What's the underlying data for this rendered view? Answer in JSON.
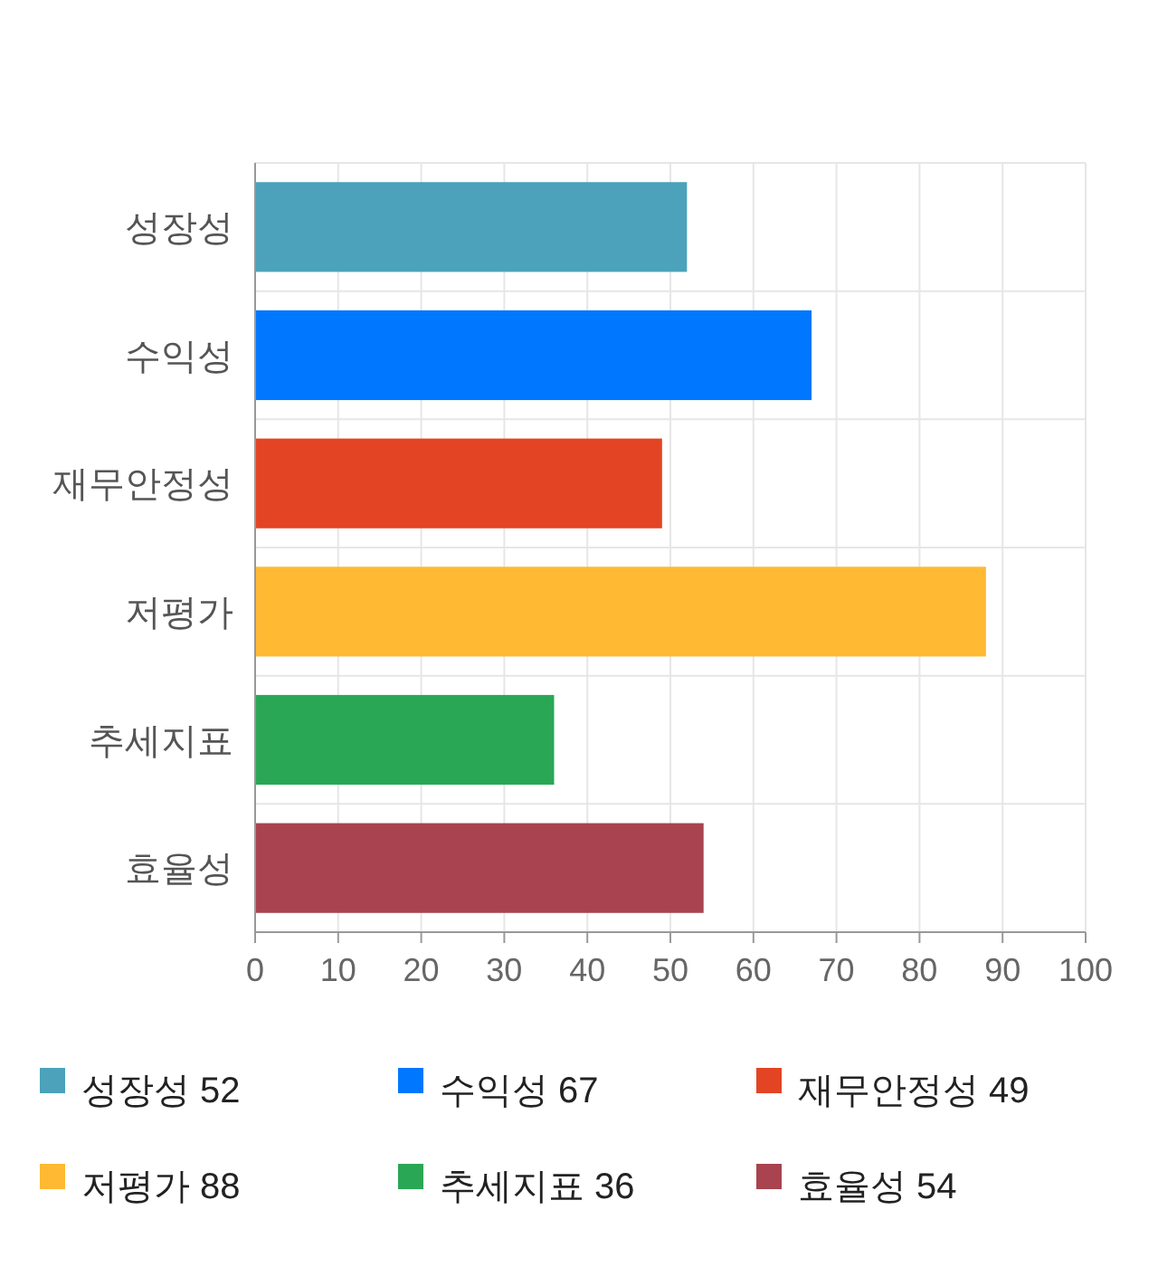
{
  "chart_data": {
    "type": "bar",
    "orientation": "horizontal",
    "categories": [
      "성장성",
      "수익성",
      "재무안정성",
      "저평가",
      "추세지표",
      "효율성"
    ],
    "series": [
      {
        "name": "성장성 52",
        "color": "#4ba2ba",
        "values": [
          52,
          null,
          null,
          null,
          null,
          null
        ]
      },
      {
        "name": "수익성 67",
        "color": "#0077ff",
        "values": [
          null,
          67,
          null,
          null,
          null,
          null
        ]
      },
      {
        "name": "재무안정성 49",
        "color": "#e34423",
        "values": [
          null,
          null,
          49,
          null,
          null,
          null
        ]
      },
      {
        "name": "저평가 88",
        "color": "#ffb933",
        "values": [
          null,
          null,
          null,
          88,
          null,
          null
        ]
      },
      {
        "name": "추세지표 36",
        "color": "#2aa755",
        "values": [
          null,
          null,
          null,
          null,
          36,
          null
        ]
      },
      {
        "name": "효율성 54",
        "color": "#a8434f",
        "values": [
          null,
          null,
          null,
          null,
          null,
          54
        ]
      }
    ],
    "xlim": [
      0,
      100
    ],
    "xticks": [
      0,
      10,
      20,
      30,
      40,
      50,
      60,
      70,
      80,
      90,
      100
    ],
    "grid": true,
    "legend": "bottom"
  }
}
